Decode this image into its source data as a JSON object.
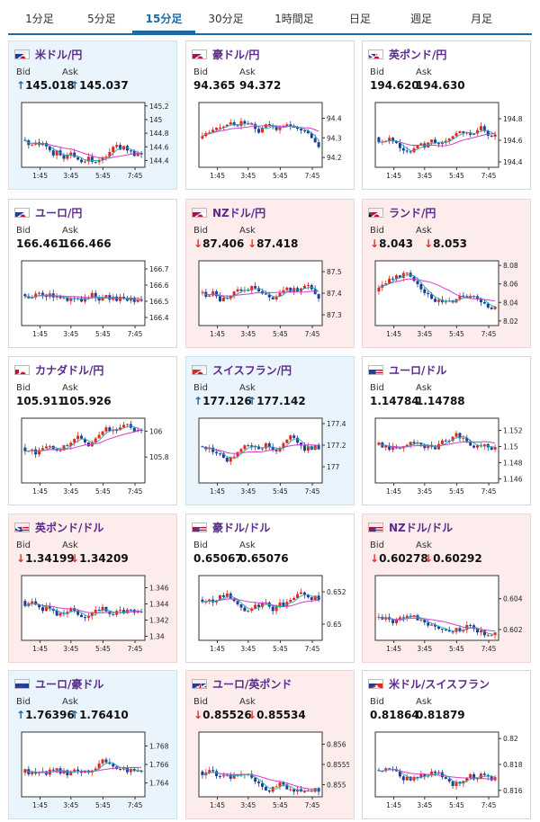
{
  "tabs": [
    "1分足",
    "5分足",
    "15分足",
    "30分足",
    "1時間足",
    "日足",
    "週足",
    "月足"
  ],
  "active_tab": 2,
  "labels": {
    "bid": "Bid",
    "ask": "Ask"
  },
  "x_ticks": [
    "1:45",
    "3:45",
    "5:45",
    "7:45"
  ],
  "colors": {
    "accent": "#1a6aa8",
    "title": "#5a2a8c",
    "candle_up": "#e0271c",
    "candle_down": "#1c3f95",
    "ma_pink": "#d63ad0",
    "ma_teal": "#22a9b5"
  },
  "cards": [
    {
      "title": "米ドル/円",
      "flag": "us-jp-flag",
      "trend": "up",
      "bid": "145.018",
      "ask": "145.037",
      "chart_data": {
        "type": "candlestick",
        "y_ticks": [
          "145.2",
          "145",
          "144.8",
          "144.6",
          "144.4"
        ],
        "ylim": [
          144.3,
          145.25
        ]
      }
    },
    {
      "title": "豪ドル/円",
      "flag": "au-jp-flag",
      "trend": "none",
      "bid": "94.365",
      "ask": "94.372",
      "chart_data": {
        "type": "candlestick",
        "y_ticks": [
          "94.4",
          "94.3",
          "94.2"
        ],
        "ylim": [
          94.15,
          94.48
        ]
      }
    },
    {
      "title": "英ポンド/円",
      "flag": "gb-jp-flag",
      "trend": "none",
      "bid": "194.620",
      "ask": "194.630",
      "chart_data": {
        "type": "candlestick",
        "y_ticks": [
          "194.8",
          "194.6",
          "194.4"
        ],
        "ylim": [
          194.35,
          194.95
        ]
      }
    },
    {
      "title": "ユーロ/円",
      "flag": "eu-jp-flag",
      "trend": "none",
      "bid": "166.461",
      "ask": "166.466",
      "chart_data": {
        "type": "candlestick",
        "y_ticks": [
          "166.7",
          "166.6",
          "166.5",
          "166.4"
        ],
        "ylim": [
          166.35,
          166.75
        ]
      }
    },
    {
      "title": "NZドル/円",
      "flag": "nz-jp-flag",
      "trend": "down",
      "bid": "87.406",
      "ask": "87.418",
      "chart_data": {
        "type": "candlestick",
        "y_ticks": [
          "87.5",
          "87.4",
          "87.3"
        ],
        "ylim": [
          87.25,
          87.55
        ]
      }
    },
    {
      "title": "ランド/円",
      "flag": "za-jp-flag",
      "trend": "down",
      "bid": "8.043",
      "ask": "8.053",
      "chart_data": {
        "type": "candlestick",
        "y_ticks": [
          "8.08",
          "8.06",
          "8.04",
          "8.02"
        ],
        "ylim": [
          8.015,
          8.085
        ]
      }
    },
    {
      "title": "カナダドル/円",
      "flag": "ca-jp-flag",
      "trend": "none",
      "bid": "105.911",
      "ask": "105.926",
      "chart_data": {
        "type": "candlestick",
        "y_ticks": [
          "106",
          "105.8"
        ],
        "ylim": [
          105.6,
          106.1
        ]
      }
    },
    {
      "title": "スイスフラン/円",
      "flag": "ch-jp-flag",
      "trend": "up",
      "bid": "177.126",
      "ask": "177.142",
      "chart_data": {
        "type": "candlestick",
        "y_ticks": [
          "177.4",
          "177.2",
          "177"
        ],
        "ylim": [
          176.85,
          177.45
        ]
      }
    },
    {
      "title": "ユーロ/ドル",
      "flag": "eu-us-flag",
      "trend": "none",
      "bid": "1.14784",
      "ask": "1.14788",
      "chart_data": {
        "type": "candlestick",
        "y_ticks": [
          "1.152",
          "1.15",
          "1.148",
          "1.146"
        ],
        "ylim": [
          1.1455,
          1.1535
        ]
      }
    },
    {
      "title": "英ポンド/ドル",
      "flag": "gb-us-flag",
      "trend": "down",
      "bid": "1.34199",
      "ask": "1.34209",
      "chart_data": {
        "type": "candlestick",
        "y_ticks": [
          "1.346",
          "1.344",
          "1.342",
          "1.34"
        ],
        "ylim": [
          1.3395,
          1.3475
        ]
      }
    },
    {
      "title": "豪ドル/ドル",
      "flag": "au-us-flag",
      "trend": "none",
      "bid": "0.65067",
      "ask": "0.65076",
      "chart_data": {
        "type": "candlestick",
        "y_ticks": [
          "0.652",
          "0.65"
        ],
        "ylim": [
          0.649,
          0.653
        ]
      }
    },
    {
      "title": "NZドル/ドル",
      "flag": "nz-us-flag",
      "trend": "down",
      "bid": "0.60278",
      "ask": "0.60292",
      "chart_data": {
        "type": "candlestick",
        "y_ticks": [
          "0.604",
          "0.602"
        ],
        "ylim": [
          0.6013,
          0.6055
        ]
      }
    },
    {
      "title": "ユーロ/豪ドル",
      "flag": "eu-au-flag",
      "trend": "up",
      "bid": "1.76396",
      "ask": "1.76410",
      "chart_data": {
        "type": "candlestick",
        "y_ticks": [
          "1.768",
          "1.766",
          "1.764"
        ],
        "ylim": [
          1.7625,
          1.7695
        ]
      }
    },
    {
      "title": "ユーロ/英ポンド",
      "flag": "eu-gb-flag",
      "trend": "down",
      "bid": "0.85526",
      "ask": "0.85534",
      "chart_data": {
        "type": "candlestick",
        "y_ticks": [
          "0.856",
          "0.8555",
          "0.855"
        ],
        "ylim": [
          0.8547,
          0.8563
        ]
      }
    },
    {
      "title": "米ドル/スイスフラン",
      "flag": "us-ch-flag",
      "trend": "none",
      "bid": "0.81864",
      "ask": "0.81879",
      "chart_data": {
        "type": "candlestick",
        "y_ticks": [
          "0.82",
          "0.818",
          "0.816"
        ],
        "ylim": [
          0.8155,
          0.8205
        ]
      }
    }
  ]
}
